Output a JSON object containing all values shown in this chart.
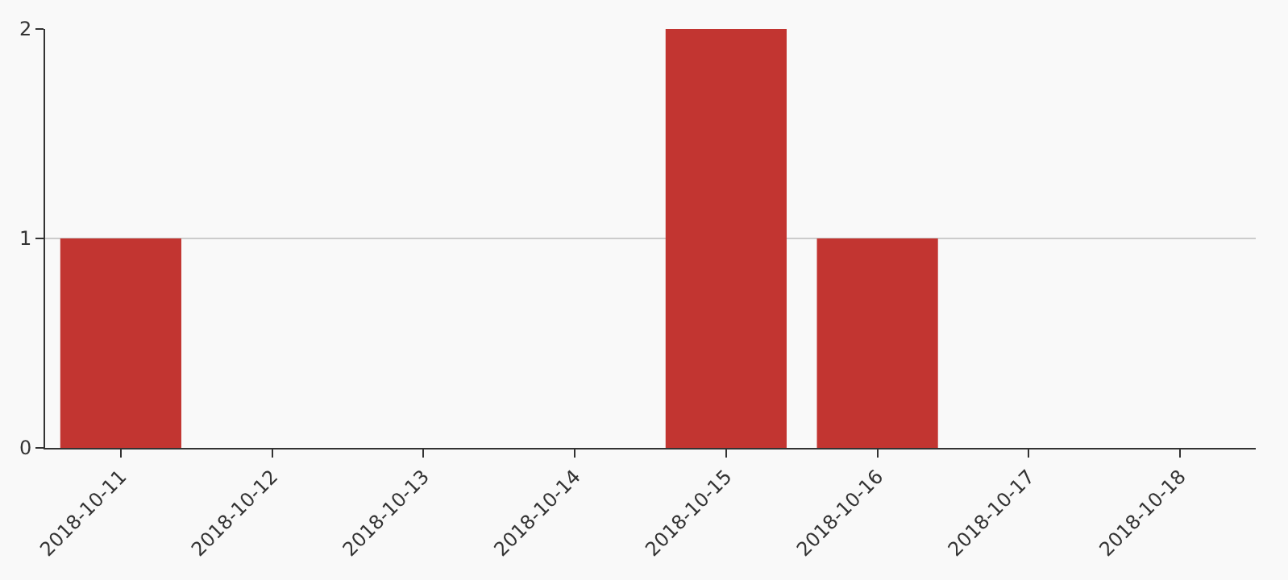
{
  "chart_data": {
    "type": "bar",
    "categories": [
      "2018-10-11",
      "2018-10-12",
      "2018-10-13",
      "2018-10-14",
      "2018-10-15",
      "2018-10-16",
      "2018-10-17",
      "2018-10-18"
    ],
    "values": [
      1,
      0,
      0,
      0,
      2,
      1,
      0,
      0
    ],
    "color": "#c23531",
    "ylim": [
      0,
      2
    ],
    "yticks": [
      0,
      1,
      2
    ],
    "grid": "y"
  }
}
